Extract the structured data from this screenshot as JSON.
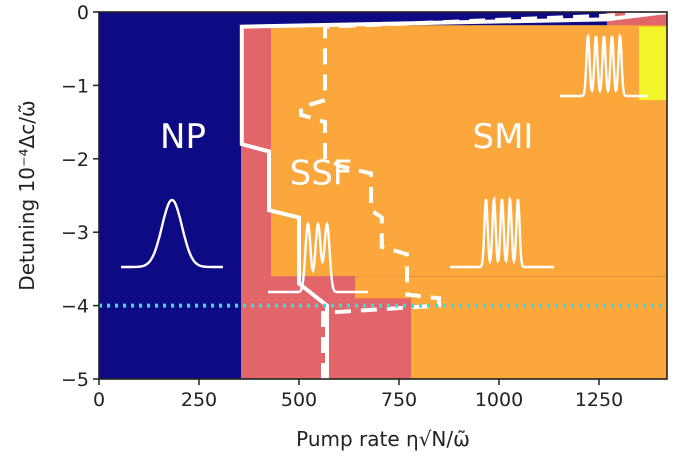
{
  "chart_data": {
    "type": "heatmap",
    "xlabel": "Pump rate  η√N/ω̃",
    "ylabel": "Detuning  10⁻⁴Δc/ω̃",
    "xlim": [
      0,
      1420
    ],
    "ylim": [
      -5,
      0
    ],
    "xticks": [
      "0",
      "250",
      "500",
      "750",
      "1000",
      "1250"
    ],
    "yticks": [
      "0",
      "−1",
      "−2",
      "−3",
      "−4",
      "−5"
    ],
    "xtick_values": [
      0,
      250,
      500,
      750,
      1000,
      1250
    ],
    "ytick_values": [
      0,
      -1,
      -2,
      -3,
      -4,
      -5
    ],
    "phase_colors": {
      "NP": "#0d0a84",
      "SSF": "#e2656a",
      "SMI": "#fba73b",
      "other": "#f2f52a"
    },
    "regions": [
      {
        "phase": "SSF",
        "rects": [
          [
            355,
            570,
            -0.2,
            -5
          ]
        ]
      },
      {
        "phase": "SSF",
        "rects": [
          [
            570,
            780,
            -3.6,
            -5
          ]
        ]
      },
      {
        "phase": "SSF",
        "rects": [
          [
            500,
            640,
            -2.8,
            -3.6
          ]
        ]
      },
      {
        "phase": "SSF",
        "rects": [
          [
            420,
            500,
            -1.5,
            -2.8
          ]
        ]
      },
      {
        "phase": "SSF",
        "rects": [
          [
            355,
            430,
            -0.2,
            -1.5
          ]
        ]
      },
      {
        "phase": "SSF",
        "rects": [
          [
            1270,
            1420,
            0,
            -0.18
          ]
        ]
      },
      {
        "phase": "SMI",
        "rects": [
          [
            430,
            1420,
            -0.18,
            -3.6
          ]
        ]
      },
      {
        "phase": "SMI",
        "rects": [
          [
            780,
            1420,
            -3.6,
            -5
          ]
        ]
      },
      {
        "phase": "SMI",
        "rects": [
          [
            640,
            780,
            -3.6,
            -3.9
          ]
        ]
      },
      {
        "phase": "SMI",
        "rects": [
          [
            1270,
            1420,
            -0.18,
            -1.2
          ]
        ]
      },
      {
        "phase": "other",
        "rects": [
          [
            1350,
            1420,
            -0.2,
            -1.2
          ]
        ]
      }
    ],
    "solid_boundary": [
      [
        570,
        -5
      ],
      [
        570,
        -4
      ],
      [
        500,
        -3.7
      ],
      [
        500,
        -2.8
      ],
      [
        425,
        -2.7
      ],
      [
        425,
        -1.9
      ],
      [
        357,
        -1.8
      ],
      [
        357,
        -0.2
      ],
      [
        1270,
        -0.1
      ],
      [
        1420,
        0
      ]
    ],
    "dashed_boundary": [
      [
        560,
        -5
      ],
      [
        560,
        -4.1
      ],
      [
        850,
        -4.0
      ],
      [
        850,
        -3.9
      ],
      [
        770,
        -3.85
      ],
      [
        770,
        -3.3
      ],
      [
        707,
        -3.2
      ],
      [
        707,
        -2.8
      ],
      [
        680,
        -2.7
      ],
      [
        680,
        -2.2
      ],
      [
        605,
        -2.1
      ],
      [
        565,
        -2.0
      ],
      [
        565,
        -1.5
      ],
      [
        505,
        -1.4
      ],
      [
        505,
        -1.3
      ],
      [
        565,
        -1.2
      ],
      [
        565,
        -0.2
      ],
      [
        1270,
        -0.05
      ],
      [
        1420,
        0
      ]
    ],
    "reference_line": {
      "y": -4,
      "style": "dotted",
      "color": "#33dde6"
    },
    "annotations": [
      {
        "text": "NP",
        "x": 210,
        "y": -1.85
      },
      {
        "text": "SSF",
        "x": 555,
        "y": -2.35
      },
      {
        "text": "SMI",
        "x": 1010,
        "y": -1.85
      }
    ],
    "grid": false,
    "legend": "none"
  }
}
